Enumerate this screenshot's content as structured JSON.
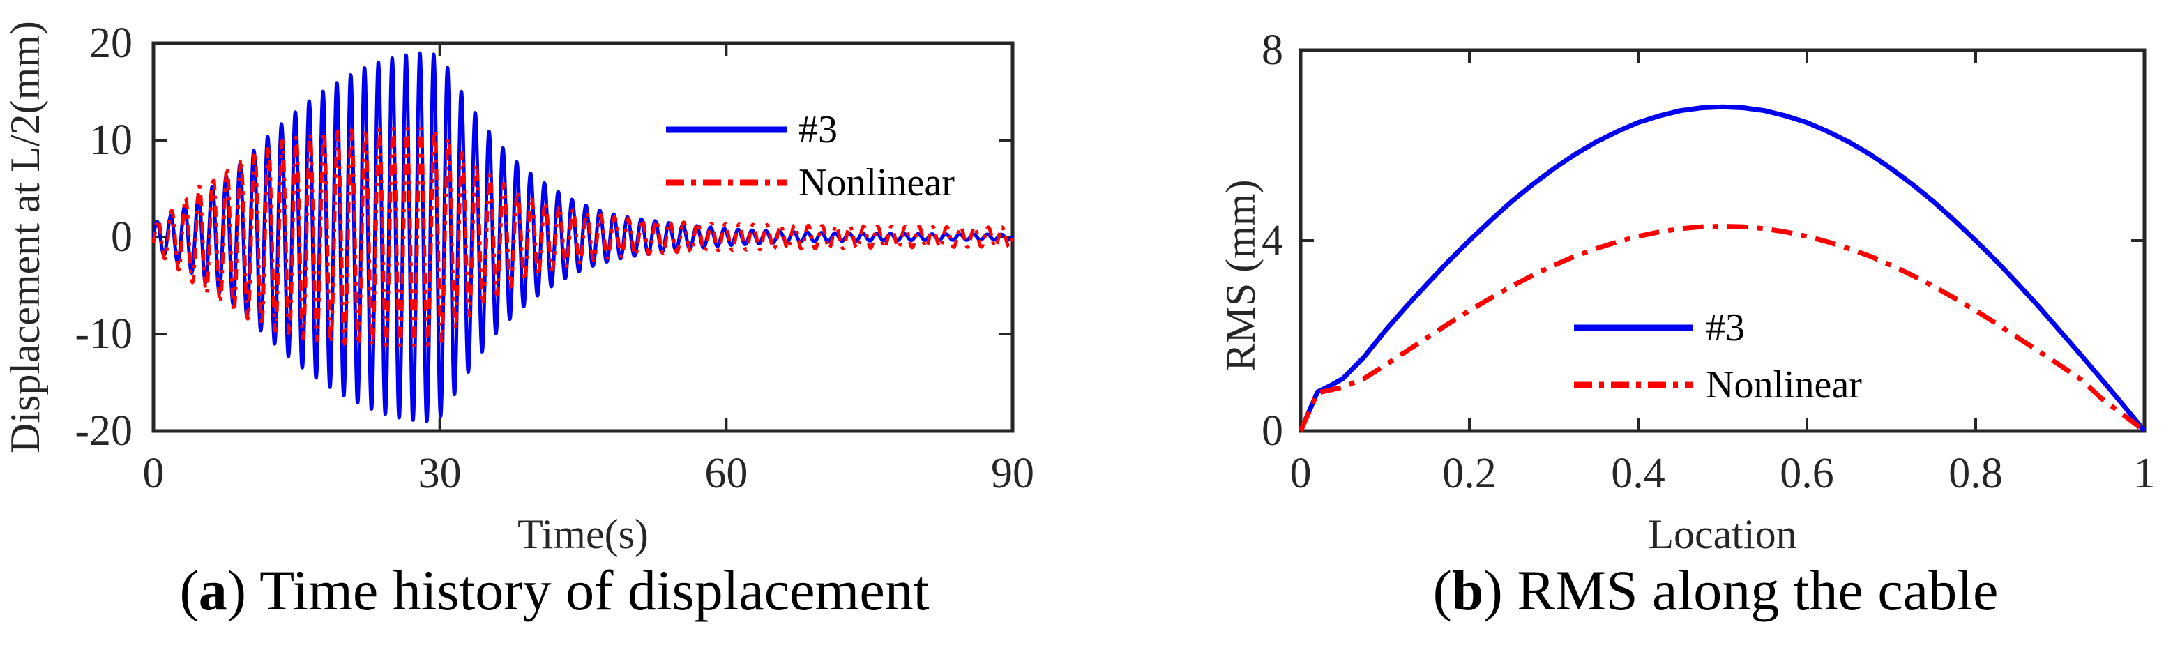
{
  "chart_data": [
    {
      "type": "line",
      "panel": "a",
      "caption": {
        "open": "(",
        "letter": "a",
        "close": ")",
        "text": " Time history of displacement"
      },
      "xlabel": "Time(s)",
      "ylabel": "Displacement at L/2(mm)",
      "xlim": [
        0,
        90
      ],
      "ylim": [
        -20,
        20
      ],
      "x_ticks": [
        0,
        30,
        60,
        90
      ],
      "x_tick_labels": [
        "0",
        "30",
        "60",
        "90"
      ],
      "y_ticks": [
        -20,
        -10,
        0,
        10,
        20
      ],
      "y_tick_labels": [
        "-20",
        "-10",
        "0",
        "10",
        "20"
      ],
      "grid": false,
      "legend": {
        "position": "upper-right-inside",
        "entries": [
          {
            "name": "#3",
            "color": "#0000f0",
            "line": "solid"
          },
          {
            "name": "Nonlinear",
            "color": "#ff0000",
            "line": "dash-dot"
          }
        ]
      },
      "series": [
        {
          "name": "#3",
          "color": "#0000f0",
          "line": "solid",
          "model": "amplitude_modulated_sine",
          "period_s": 1.45,
          "phase_rad": 0,
          "envelope_t": [
            0,
            1,
            2,
            3,
            4,
            5,
            6,
            8,
            10,
            12,
            14,
            16,
            18,
            20,
            22,
            24,
            26,
            28,
            29,
            30,
            31,
            32,
            34,
            36,
            38,
            40,
            42,
            44,
            46,
            48,
            50,
            55,
            60,
            65,
            70,
            75,
            80,
            85,
            90
          ],
          "envelope_mm": [
            1.5,
            1.8,
            2.3,
            3.0,
            3.7,
            4.4,
            5.1,
            6.6,
            8.4,
            10.4,
            12.2,
            13.8,
            15.2,
            16.4,
            17.4,
            18.2,
            18.7,
            19.0,
            19.0,
            18.6,
            17.2,
            15.4,
            12.4,
            9.8,
            7.8,
            6.2,
            4.9,
            3.8,
            3.0,
            2.4,
            2.0,
            1.35,
            0.85,
            0.6,
            0.45,
            0.38,
            0.33,
            0.3,
            0.28
          ]
        },
        {
          "name": "Nonlinear",
          "color": "#ff0000",
          "line": "dash-dot",
          "model": "amplitude_modulated_sine",
          "period_s": 1.45,
          "phase_rad": -0.4,
          "envelope_t": [
            0,
            1,
            2,
            3,
            4,
            5,
            6,
            8,
            10,
            12,
            14,
            16,
            18,
            20,
            22,
            24,
            26,
            28,
            29,
            30,
            31,
            32,
            34,
            36,
            38,
            40,
            42,
            44,
            46,
            48,
            50,
            55,
            60,
            65,
            70,
            75,
            80,
            85,
            90
          ],
          "envelope_mm": [
            1.5,
            2.1,
            2.8,
            3.7,
            4.6,
            5.4,
            6.1,
            7.4,
            8.5,
            9.4,
            10.1,
            10.5,
            10.8,
            11.0,
            11.1,
            11.2,
            11.2,
            11.2,
            11.1,
            10.9,
            10.1,
            9.0,
            7.3,
            5.9,
            4.8,
            4.0,
            3.3,
            2.8,
            2.4,
            2.1,
            1.9,
            1.55,
            1.35,
            1.25,
            1.18,
            1.12,
            1.07,
            1.03,
            1.0
          ]
        }
      ]
    },
    {
      "type": "line",
      "panel": "b",
      "caption": {
        "open": "(",
        "letter": "b",
        "close": ")",
        "text": " RMS along the cable"
      },
      "xlabel": "Location",
      "ylabel": "RMS (mm)",
      "xlim": [
        0,
        1
      ],
      "ylim": [
        0,
        8
      ],
      "x_ticks": [
        0,
        0.2,
        0.4,
        0.6,
        0.8,
        1
      ],
      "x_tick_labels": [
        "0",
        "0.2",
        "0.4",
        "0.6",
        "0.8",
        "1"
      ],
      "y_ticks": [
        0,
        4,
        8
      ],
      "y_tick_labels": [
        "0",
        "4",
        "8"
      ],
      "grid": false,
      "legend": {
        "position": "lower-center-inside",
        "entries": [
          {
            "name": "#3",
            "color": "#0000f0",
            "line": "solid"
          },
          {
            "name": "Nonlinear",
            "color": "#ff0000",
            "line": "dash-dot"
          }
        ]
      },
      "series": [
        {
          "name": "#3",
          "color": "#0000f0",
          "line": "solid",
          "x": [
            0,
            0.02,
            0.035,
            0.05,
            0.075,
            0.1,
            0.125,
            0.15,
            0.175,
            0.2,
            0.225,
            0.25,
            0.275,
            0.3,
            0.325,
            0.35,
            0.375,
            0.4,
            0.425,
            0.45,
            0.475,
            0.5,
            0.525,
            0.55,
            0.575,
            0.6,
            0.625,
            0.65,
            0.675,
            0.7,
            0.725,
            0.75,
            0.775,
            0.8,
            0.825,
            0.85,
            0.875,
            0.9,
            0.925,
            0.95,
            0.975,
            1
          ],
          "y": [
            0,
            0.82,
            0.95,
            1.1,
            1.55,
            2.1,
            2.61,
            3.09,
            3.56,
            4.0,
            4.42,
            4.82,
            5.18,
            5.51,
            5.81,
            6.07,
            6.29,
            6.48,
            6.62,
            6.73,
            6.79,
            6.81,
            6.79,
            6.73,
            6.62,
            6.48,
            6.29,
            6.07,
            5.81,
            5.51,
            5.18,
            4.82,
            4.42,
            4.0,
            3.56,
            3.09,
            2.61,
            2.1,
            1.59,
            1.07,
            0.54,
            0
          ]
        },
        {
          "name": "Nonlinear",
          "color": "#ff0000",
          "line": "dash-dot",
          "x": [
            0,
            0.02,
            0.035,
            0.05,
            0.075,
            0.1,
            0.125,
            0.15,
            0.175,
            0.2,
            0.225,
            0.25,
            0.275,
            0.3,
            0.325,
            0.35,
            0.375,
            0.4,
            0.425,
            0.45,
            0.475,
            0.5,
            0.525,
            0.55,
            0.575,
            0.6,
            0.625,
            0.65,
            0.675,
            0.7,
            0.725,
            0.75,
            0.775,
            0.8,
            0.825,
            0.85,
            0.875,
            0.9,
            0.925,
            0.95,
            0.975,
            1
          ],
          "y": [
            0,
            0.8,
            0.86,
            0.92,
            1.1,
            1.38,
            1.67,
            1.96,
            2.25,
            2.53,
            2.79,
            3.04,
            3.27,
            3.48,
            3.67,
            3.83,
            3.97,
            4.09,
            4.18,
            4.25,
            4.29,
            4.3,
            4.29,
            4.25,
            4.18,
            4.09,
            3.97,
            3.83,
            3.67,
            3.48,
            3.27,
            3.04,
            2.79,
            2.53,
            2.25,
            1.96,
            1.67,
            1.38,
            1.08,
            0.67,
            0.34,
            0
          ]
        }
      ]
    }
  ],
  "style": {
    "axis_color": "#262626",
    "background": "#ffffff"
  }
}
